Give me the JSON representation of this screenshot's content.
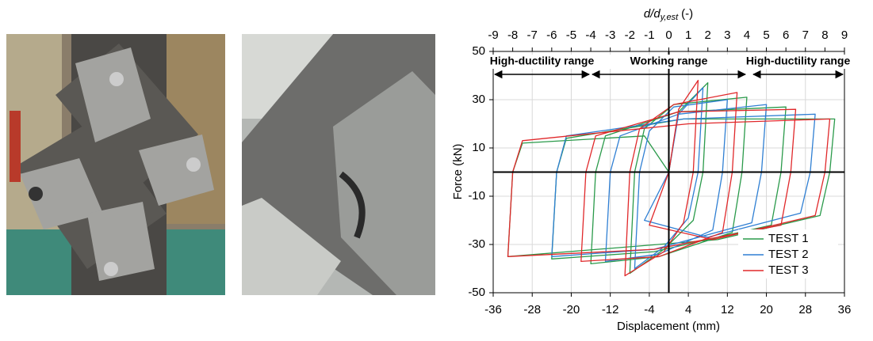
{
  "chart_data": {
    "type": "line",
    "xlabel": "Displacement (mm)",
    "ylabel": "Force (kN)",
    "x2label": [
      "d/d",
      "y,est",
      "(-)"
    ],
    "xlim": [
      -36,
      36
    ],
    "xticks": [
      -36,
      -28,
      -20,
      -12,
      -4,
      4,
      12,
      20,
      28,
      36
    ],
    "ylim": [
      -50,
      50
    ],
    "yticks": [
      -50,
      -30,
      -10,
      10,
      30,
      50
    ],
    "x2lim": [
      -9,
      9
    ],
    "x2ticks": [
      -9,
      -8,
      -7,
      -6,
      -5,
      -4,
      -3,
      -2,
      -1,
      0,
      1,
      2,
      3,
      4,
      5,
      6,
      7,
      8,
      9
    ],
    "grid": true,
    "legend": "lower right",
    "annotations": [
      {
        "text": "High-ductility range",
        "range": [
          -36,
          -16
        ]
      },
      {
        "text": "Working range",
        "range": [
          -16,
          16
        ]
      },
      {
        "text": "High-ductility range",
        "range": [
          17,
          36
        ]
      }
    ],
    "series": [
      {
        "name": "TEST 1",
        "color": "#2a9a4a",
        "x": [
          0,
          2,
          8,
          7,
          5,
          -1,
          -8,
          -7,
          -5,
          1,
          16,
          15,
          13,
          -2,
          -16,
          -15,
          -13,
          2,
          24,
          23,
          21,
          -3,
          -24,
          -23,
          -21,
          3,
          34,
          33,
          31,
          10,
          -33,
          -32,
          -30,
          -5,
          0
        ],
        "y": [
          0,
          25,
          37,
          0,
          -20,
          -32,
          -42,
          0,
          18,
          28,
          31,
          0,
          -25,
          -35,
          -38,
          0,
          15,
          25,
          27,
          0,
          -22,
          -33,
          -36,
          0,
          14,
          22,
          22,
          0,
          -18,
          -28,
          -35,
          0,
          12,
          15,
          0
        ]
      },
      {
        "name": "TEST 2",
        "color": "#2f7fd3",
        "x": [
          0,
          2,
          7,
          6,
          4,
          -1,
          -7,
          -6,
          -4,
          1,
          12,
          11,
          9,
          -2,
          -13,
          -12,
          -10,
          2,
          20,
          19,
          17,
          -3,
          -24,
          -23,
          -21,
          3,
          30,
          29,
          27,
          8,
          -5,
          0
        ],
        "y": [
          0,
          24,
          35,
          0,
          -19,
          -31,
          -40,
          0,
          17,
          27,
          30,
          0,
          -24,
          -34,
          -37,
          0,
          15,
          24,
          28,
          0,
          -21,
          -32,
          -35,
          0,
          15,
          22,
          24,
          0,
          -17,
          -27,
          -20,
          0
        ]
      },
      {
        "name": "TEST 3",
        "color": "#e0282a",
        "x": [
          0,
          2,
          6,
          5,
          3,
          -1,
          -9,
          -8,
          -6,
          1,
          14,
          13,
          11,
          -2,
          -18,
          -17,
          -15,
          2,
          26,
          25,
          23,
          -3,
          -33,
          -32,
          -30,
          4,
          33,
          32,
          30,
          9,
          -4,
          0
        ],
        "y": [
          0,
          26,
          38,
          0,
          -21,
          -33,
          -43,
          0,
          18,
          28,
          33,
          0,
          -25,
          -35,
          -37,
          0,
          15,
          25,
          26,
          0,
          -22,
          -32,
          -35,
          0,
          13,
          20,
          22,
          0,
          -18,
          -28,
          -22,
          0
        ]
      }
    ]
  }
}
